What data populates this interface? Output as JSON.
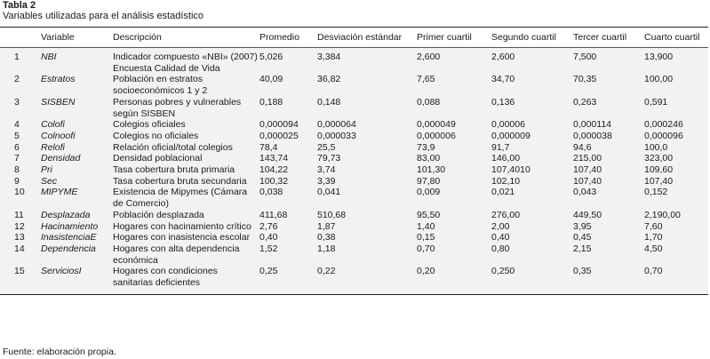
{
  "title": "Tabla 2",
  "subtitle": "Variables utilizadas para el análisis estadístico",
  "columns": [
    "",
    "Variable",
    "Descripción",
    "Promedio",
    "Desviación estándar",
    "Primer cuartil",
    "Segundo cuartil",
    "Tercer cuartil",
    "Cuarto cuartil"
  ],
  "rows": [
    [
      "1",
      "NBI",
      "Indicador compuesto «NBI» (2007) Encuesta Calidad de Vida",
      "5,026",
      "3,384",
      "2,600",
      "2,600",
      "7,500",
      "13,900"
    ],
    [
      "2",
      "Estratos",
      "Población en estratos socioeconómicos 1 y 2",
      "40,09",
      "36,82",
      "7,65",
      "34,70",
      "70,35",
      "100,00"
    ],
    [
      "3",
      "SISBEN",
      "Personas pobres y vulnerables según SISBEN",
      "0,188",
      "0,148",
      "0,088",
      "0,136",
      "0,263",
      "0,591"
    ],
    [
      "4",
      "Colofi",
      "Colegios oficiales",
      "0,000094",
      "0,000064",
      "0,000049",
      "0,00006",
      "0,000114",
      "0,000246"
    ],
    [
      "5",
      "Colnoofi",
      "Colegios no oficiales",
      "0,000025",
      "0,000033",
      "0,000006",
      "0,000009",
      "0,000038",
      "0,000096"
    ],
    [
      "6",
      "Relofi",
      "Relación oficial/total colegios",
      "78,4",
      "25,5",
      "73,9",
      "91,7",
      "94,6",
      "100,0"
    ],
    [
      "7",
      "Densidad",
      "Densidad poblacional",
      "143,74",
      "79,73",
      "83,00",
      "146,00",
      "215,00",
      "323,00"
    ],
    [
      "8",
      "Pri",
      "Tasa cobertura bruta primaria",
      "104,22",
      "3,74",
      "101,30",
      "107,4010",
      "107,40",
      "109,60"
    ],
    [
      "9",
      "Sec",
      "Tasa cobertura bruta secundaria",
      "100,32",
      "3,39",
      "97,80",
      "102,10",
      "107,40",
      "107,40"
    ],
    [
      "10",
      "MIPYME",
      "Existencia de Mipymes (Cámara de Comercio)",
      "0,038",
      "0,041",
      "0,009",
      "0,021",
      "0,043",
      "0,152"
    ],
    [
      "11",
      "Desplazada",
      "Población desplazada",
      "411,68",
      "510,68",
      "95,50",
      "276,00",
      "449,50",
      "2,190,00"
    ],
    [
      "12",
      "Hacinamiento",
      "Hogares con hacinamiento crítico",
      "2,76",
      "1,87",
      "1,40",
      "2,00",
      "3,95",
      "7,60"
    ],
    [
      "13",
      "InasistenciaE",
      "Hogares con inasistencia escolar",
      "0,40",
      "0,38",
      "0,15",
      "0,40",
      "0,45",
      "1,70"
    ],
    [
      "14",
      "Dependencia",
      "Hogares con alta dependencia económica",
      "1,52",
      "1,18",
      "0,70",
      "0,80",
      "2,15",
      "4,50"
    ],
    [
      "15",
      "ServiciosI",
      "Hogares con condiciones sanitarias deficientes",
      "0,25",
      "0,22",
      "0,20",
      "0,250",
      "0,35",
      "0,70"
    ]
  ],
  "footnote": "Fuente: elaboración propia."
}
